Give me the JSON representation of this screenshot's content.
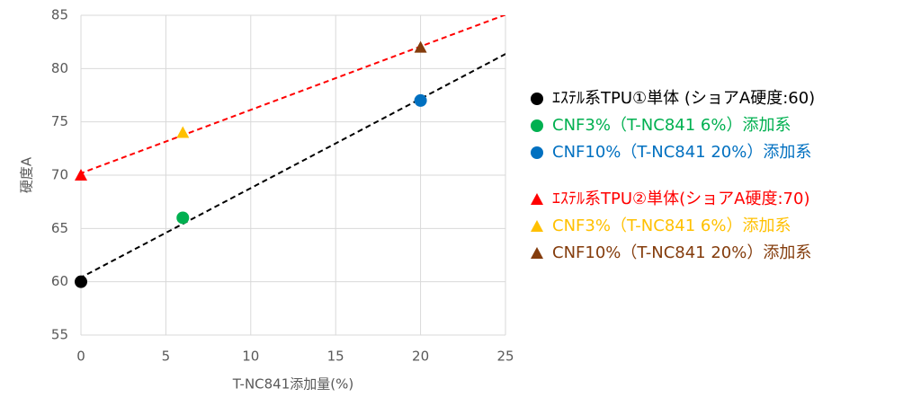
{
  "chart_data": {
    "type": "scatter",
    "x_label": "T-NC841添加量(%)",
    "y_label": "硬度A",
    "xlim": [
      0,
      25
    ],
    "xticks": [
      0,
      5,
      10,
      15,
      20,
      25
    ],
    "ylim": [
      55,
      85
    ],
    "yticks": [
      55,
      60,
      65,
      70,
      75,
      80,
      85
    ],
    "grid": true,
    "legend": "right",
    "series": [
      {
        "name": "ｴｽﾃﾙ系TPU①単体 (ショアA硬度:60)",
        "color": "#000000",
        "marker": "circle",
        "trendline": true,
        "x": [
          0
        ],
        "values": [
          60
        ]
      },
      {
        "name": "CNF3%（T-NC841 6%）添加系",
        "color": "#00b050",
        "marker": "circle",
        "x": [
          6
        ],
        "values": [
          66
        ]
      },
      {
        "name": "CNF10%（T-NC841 20%）添加系",
        "color": "#0070c0",
        "marker": "circle",
        "x": [
          20
        ],
        "values": [
          77
        ]
      },
      {
        "name": "ｴｽﾃﾙ系TPU②単体(ショアA硬度:70)",
        "color": "#ff0000",
        "marker": "triangle",
        "trendline": true,
        "x": [
          0
        ],
        "values": [
          70
        ]
      },
      {
        "name": "CNF3%（T-NC841 6%）添加系",
        "color": "#ffc000",
        "marker": "triangle",
        "x": [
          6
        ],
        "values": [
          74
        ]
      },
      {
        "name": "CNF10%（T-NC841 20%）添加系",
        "color": "#843c0c",
        "marker": "triangle",
        "x": [
          20
        ],
        "values": [
          82
        ]
      }
    ]
  }
}
